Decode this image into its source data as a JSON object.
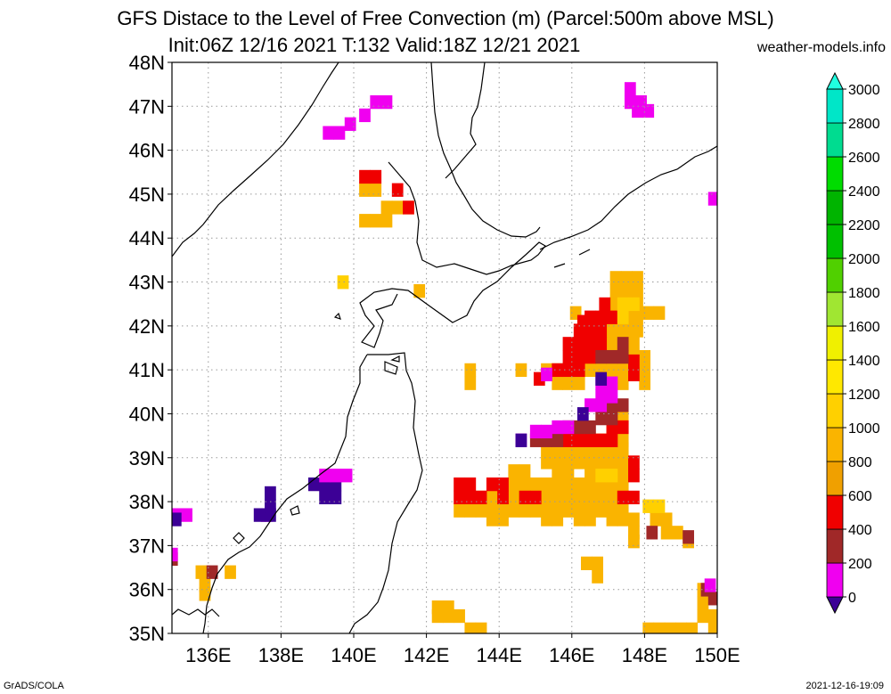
{
  "title": {
    "line1": "GFS Distace to the Level of Free Convection (m) (Parcel:500m above MSL)",
    "line2": "Init:06Z 12/16 2021 T:132 Valid:18Z 12/21 2021"
  },
  "site": "weather-models.info",
  "footer": {
    "left": "GrADS/COLA",
    "right": "2021-12-16-19:09"
  },
  "map": {
    "lon_range": [
      135,
      150
    ],
    "lat_range": [
      35,
      48
    ],
    "lon_ticks": [
      136,
      138,
      140,
      142,
      144,
      146,
      148,
      150
    ],
    "lat_ticks": [
      35,
      36,
      37,
      38,
      39,
      40,
      41,
      42,
      43,
      44,
      45,
      46,
      47,
      48
    ],
    "lon_labels": [
      "136E",
      "138E",
      "140E",
      "142E",
      "144E",
      "146E",
      "148E",
      "150E"
    ],
    "lat_labels": [
      "35N",
      "36N",
      "37N",
      "38N",
      "39N",
      "40N",
      "41N",
      "42N",
      "43N",
      "44N",
      "45N",
      "46N",
      "47N",
      "48N"
    ]
  },
  "colorbar": {
    "labels": [
      "0",
      "200",
      "400",
      "600",
      "800",
      "1000",
      "1200",
      "1400",
      "1600",
      "1800",
      "2000",
      "2200",
      "2400",
      "2600",
      "2800",
      "3000"
    ],
    "colors": [
      "#3c0096",
      "#f000f0",
      "#a02828",
      "#f00000",
      "#f0a000",
      "#fab400",
      "#ffd000",
      "#ffe800",
      "#f0f000",
      "#a0e632",
      "#50d000",
      "#00c000",
      "#00b400",
      "#00dc00",
      "#00dc90",
      "#00e6c8",
      "#20ffe0"
    ]
  },
  "regions": [
    {
      "color": "#fab400",
      "cells": [
        [
          140.3,
          44.4
        ],
        [
          140.6,
          44.4
        ],
        [
          140.9,
          44.4
        ],
        [
          140.9,
          44.7
        ],
        [
          140.3,
          45.1
        ],
        [
          140.6,
          45.1
        ],
        [
          141.2,
          44.7
        ],
        [
          141.5,
          44.7
        ]
      ]
    },
    {
      "color": "#f00000",
      "cells": [
        [
          140.3,
          45.4
        ],
        [
          141.2,
          45.1
        ],
        [
          141.5,
          44.7
        ],
        [
          140.6,
          45.4
        ]
      ]
    },
    {
      "color": "#f000f0",
      "cells": [
        [
          140.6,
          47.1
        ],
        [
          140.9,
          47.1
        ],
        [
          140.3,
          46.8
        ],
        [
          139.9,
          46.6
        ],
        [
          139.6,
          46.4
        ],
        [
          139.3,
          46.4
        ],
        [
          147.6,
          47.4
        ],
        [
          147.6,
          47.1
        ],
        [
          147.9,
          47.1
        ],
        [
          148.1,
          46.9
        ],
        [
          147.8,
          46.9
        ],
        [
          149.9,
          44.9
        ],
        [
          135.1,
          37.7
        ],
        [
          135.4,
          37.7
        ],
        [
          137.6,
          37.7
        ]
      ]
    },
    {
      "color": "#fab400",
      "cells": [
        [
          135.8,
          36.4
        ],
        [
          135.9,
          36.1
        ],
        [
          135.9,
          35.9
        ],
        [
          136.6,
          36.4
        ],
        [
          142.3,
          35.6
        ],
        [
          142.6,
          35.6
        ],
        [
          142.9,
          35.4
        ],
        [
          143.2,
          35.1
        ],
        [
          143.5,
          35.1
        ],
        [
          148.1,
          35.1
        ],
        [
          148.4,
          35.1
        ],
        [
          148.7,
          35.1
        ],
        [
          149.0,
          35.1
        ],
        [
          149.3,
          35.1
        ],
        [
          149.6,
          35.4
        ],
        [
          149.6,
          35.7
        ],
        [
          149.6,
          36.0
        ],
        [
          149.9,
          35.4
        ],
        [
          149.9,
          35.1
        ],
        [
          146.4,
          36.6
        ],
        [
          146.7,
          36.6
        ],
        [
          146.7,
          36.3
        ],
        [
          142.3,
          35.4
        ],
        [
          142.6,
          35.4
        ],
        [
          141.8,
          42.8
        ]
      ]
    },
    {
      "color": "#fab400",
      "cells": [
        [
          142.9,
          37.8
        ],
        [
          143.2,
          37.8
        ],
        [
          143.5,
          37.8
        ],
        [
          143.8,
          37.8
        ],
        [
          144.1,
          37.8
        ],
        [
          144.4,
          37.8
        ],
        [
          144.7,
          37.8
        ],
        [
          145.0,
          37.8
        ],
        [
          145.3,
          37.8
        ],
        [
          145.6,
          37.8
        ],
        [
          145.9,
          37.8
        ],
        [
          146.2,
          37.8
        ],
        [
          146.5,
          37.8
        ],
        [
          146.8,
          37.8
        ],
        [
          147.1,
          37.8
        ],
        [
          147.4,
          37.8
        ],
        [
          143.8,
          37.6
        ],
        [
          144.1,
          37.6
        ],
        [
          145.3,
          37.6
        ],
        [
          145.6,
          37.6
        ],
        [
          146.2,
          37.6
        ],
        [
          146.5,
          37.6
        ],
        [
          147.1,
          37.6
        ],
        [
          147.4,
          37.6
        ],
        [
          147.7,
          37.6
        ],
        [
          147.7,
          37.3
        ],
        [
          147.7,
          37.1
        ],
        [
          148.3,
          37.6
        ],
        [
          148.6,
          37.6
        ],
        [
          148.6,
          37.3
        ],
        [
          148.9,
          37.3
        ],
        [
          149.2,
          37.1
        ],
        [
          143.5,
          38.1
        ],
        [
          143.8,
          38.1
        ],
        [
          144.1,
          38.1
        ],
        [
          144.4,
          38.1
        ],
        [
          144.7,
          38.1
        ],
        [
          145.0,
          38.1
        ],
        [
          145.3,
          38.1
        ],
        [
          145.6,
          38.1
        ],
        [
          145.9,
          38.1
        ],
        [
          146.2,
          38.1
        ],
        [
          146.5,
          38.1
        ],
        [
          146.8,
          38.1
        ],
        [
          147.1,
          38.1
        ],
        [
          147.4,
          38.1
        ],
        [
          144.4,
          38.4
        ],
        [
          144.7,
          38.4
        ],
        [
          145.0,
          38.4
        ],
        [
          145.3,
          38.4
        ],
        [
          145.6,
          38.4
        ],
        [
          145.9,
          38.4
        ],
        [
          146.2,
          38.4
        ],
        [
          146.5,
          38.4
        ],
        [
          146.8,
          38.4
        ],
        [
          147.1,
          38.4
        ],
        [
          147.4,
          38.4
        ],
        [
          144.4,
          38.7
        ],
        [
          144.7,
          38.7
        ],
        [
          145.6,
          38.7
        ],
        [
          145.9,
          38.7
        ],
        [
          146.5,
          38.7
        ],
        [
          147.1,
          38.7
        ],
        [
          147.4,
          38.7
        ],
        [
          145.3,
          38.9
        ],
        [
          145.6,
          38.9
        ],
        [
          145.9,
          38.9
        ],
        [
          146.2,
          38.9
        ],
        [
          146.5,
          38.9
        ],
        [
          146.8,
          38.9
        ],
        [
          147.1,
          38.9
        ],
        [
          147.4,
          38.9
        ],
        [
          145.3,
          39.2
        ],
        [
          145.6,
          39.2
        ],
        [
          145.9,
          39.2
        ],
        [
          146.2,
          39.2
        ],
        [
          146.5,
          39.2
        ],
        [
          146.8,
          39.2
        ],
        [
          147.1,
          39.2
        ],
        [
          147.4,
          39.2
        ],
        [
          145.9,
          39.4
        ],
        [
          146.2,
          39.4
        ],
        [
          146.5,
          39.4
        ],
        [
          146.8,
          39.4
        ],
        [
          147.1,
          39.4
        ],
        [
          147.4,
          39.4
        ],
        [
          147.4,
          39.7
        ],
        [
          147.1,
          39.7
        ],
        [
          147.4,
          39.9
        ]
      ]
    },
    {
      "color": "#fab400",
      "cells": [
        [
          145.3,
          41.0
        ],
        [
          145.6,
          41.0
        ],
        [
          145.9,
          41.0
        ],
        [
          146.2,
          41.0
        ],
        [
          146.5,
          41.0
        ],
        [
          146.8,
          41.0
        ],
        [
          147.1,
          41.0
        ],
        [
          147.4,
          41.0
        ],
        [
          147.7,
          41.0
        ],
        [
          148.0,
          41.0
        ],
        [
          148.0,
          40.7
        ],
        [
          147.4,
          40.7
        ],
        [
          146.2,
          40.7
        ],
        [
          145.9,
          40.7
        ],
        [
          145.6,
          40.7
        ],
        [
          146.8,
          41.3
        ],
        [
          147.1,
          41.3
        ],
        [
          147.4,
          41.3
        ],
        [
          147.7,
          41.3
        ],
        [
          148.0,
          41.3
        ],
        [
          146.8,
          41.6
        ],
        [
          147.1,
          41.6
        ],
        [
          147.4,
          41.6
        ],
        [
          147.7,
          41.6
        ],
        [
          146.9,
          41.9
        ],
        [
          147.2,
          41.9
        ],
        [
          147.5,
          41.9
        ],
        [
          147.8,
          41.9
        ],
        [
          146.9,
          42.2
        ],
        [
          147.2,
          42.2
        ],
        [
          147.5,
          42.2
        ],
        [
          147.8,
          42.2
        ],
        [
          148.1,
          42.3
        ],
        [
          148.4,
          42.3
        ],
        [
          147.2,
          42.5
        ],
        [
          147.5,
          42.5
        ],
        [
          147.8,
          42.5
        ],
        [
          147.2,
          42.8
        ],
        [
          147.5,
          42.8
        ],
        [
          147.8,
          42.8
        ],
        [
          147.2,
          43.1
        ],
        [
          147.5,
          43.1
        ],
        [
          147.8,
          43.1
        ],
        [
          146.1,
          42.3
        ],
        [
          143.2,
          41.0
        ],
        [
          143.2,
          40.7
        ],
        [
          144.6,
          41.0
        ]
      ]
    },
    {
      "color": "#f00000",
      "cells": [
        [
          142.9,
          38.4
        ],
        [
          142.9,
          38.1
        ],
        [
          143.2,
          38.1
        ],
        [
          143.5,
          38.1
        ],
        [
          143.2,
          38.4
        ],
        [
          143.8,
          38.4
        ],
        [
          144.1,
          38.1
        ],
        [
          144.1,
          38.4
        ],
        [
          144.7,
          38.1
        ],
        [
          145.0,
          38.1
        ],
        [
          147.7,
          38.6
        ],
        [
          147.7,
          38.9
        ],
        [
          147.4,
          38.1
        ],
        [
          147.7,
          38.1
        ],
        [
          145.9,
          39.4
        ],
        [
          146.2,
          39.4
        ],
        [
          146.5,
          39.4
        ],
        [
          146.8,
          39.4
        ],
        [
          147.1,
          39.4
        ],
        [
          147.1,
          39.7
        ],
        [
          147.4,
          39.7
        ],
        [
          145.6,
          41.0
        ],
        [
          145.9,
          41.0
        ],
        [
          146.2,
          41.0
        ],
        [
          145.9,
          41.3
        ],
        [
          146.2,
          41.3
        ],
        [
          146.5,
          41.3
        ],
        [
          145.9,
          41.6
        ],
        [
          146.2,
          41.6
        ],
        [
          146.5,
          41.6
        ],
        [
          146.8,
          41.6
        ],
        [
          146.2,
          41.9
        ],
        [
          146.5,
          41.9
        ],
        [
          146.8,
          41.9
        ],
        [
          146.5,
          42.2
        ],
        [
          146.8,
          42.2
        ],
        [
          147.1,
          42.2
        ],
        [
          147.7,
          40.9
        ],
        [
          147.7,
          41.2
        ],
        [
          145.1,
          40.8
        ],
        [
          146.9,
          42.5
        ],
        [
          146.3,
          42.1
        ]
      ]
    },
    {
      "color": "#a02828",
      "cells": [
        [
          145.3,
          39.4
        ],
        [
          145.6,
          39.4
        ],
        [
          145.0,
          39.4
        ],
        [
          145.9,
          39.7
        ],
        [
          146.2,
          39.7
        ],
        [
          146.5,
          39.7
        ],
        [
          146.8,
          39.9
        ],
        [
          147.1,
          39.9
        ],
        [
          147.4,
          40.2
        ],
        [
          147.1,
          40.2
        ],
        [
          147.1,
          41.3
        ],
        [
          147.4,
          41.3
        ],
        [
          147.4,
          41.6
        ],
        [
          146.8,
          41.3
        ],
        [
          136.1,
          36.4
        ],
        [
          135.0,
          36.7
        ],
        [
          149.7,
          36.0
        ],
        [
          149.9,
          35.8
        ],
        [
          148.2,
          37.3
        ],
        [
          149.2,
          37.2
        ]
      ]
    },
    {
      "color": "#f000f0",
      "cells": [
        [
          145.0,
          39.6
        ],
        [
          145.3,
          39.6
        ],
        [
          145.6,
          39.7
        ],
        [
          145.9,
          39.7
        ],
        [
          146.5,
          40.2
        ],
        [
          146.8,
          40.2
        ],
        [
          146.8,
          40.4
        ],
        [
          147.1,
          40.4
        ],
        [
          146.8,
          40.7
        ],
        [
          147.1,
          40.7
        ],
        [
          145.3,
          40.9
        ],
        [
          135.0,
          36.8
        ],
        [
          144.6,
          39.4
        ],
        [
          149.8,
          36.1
        ]
      ]
    },
    {
      "color": "#3c0096",
      "cells": [
        [
          138.9,
          38.4
        ],
        [
          139.2,
          38.4
        ],
        [
          139.5,
          38.4
        ],
        [
          139.2,
          38.1
        ],
        [
          139.5,
          38.1
        ],
        [
          137.4,
          37.7
        ],
        [
          137.7,
          37.7
        ],
        [
          137.7,
          37.9
        ],
        [
          137.7,
          38.2
        ],
        [
          135.1,
          37.6
        ],
        [
          146.3,
          40.0
        ],
        [
          146.8,
          40.8
        ],
        [
          144.6,
          39.4
        ]
      ]
    },
    {
      "color": "#f000f0",
      "cells": [
        [
          139.5,
          38.6
        ],
        [
          139.8,
          38.6
        ],
        [
          139.2,
          38.6
        ]
      ]
    },
    {
      "color": "#ffd000",
      "cells": [
        [
          146.8,
          38.6
        ],
        [
          147.1,
          38.6
        ],
        [
          147.4,
          42.5
        ],
        [
          147.7,
          42.5
        ],
        [
          148.1,
          37.9
        ],
        [
          148.4,
          37.9
        ],
        [
          147.4,
          42.2
        ],
        [
          139.7,
          43.0
        ]
      ]
    }
  ]
}
